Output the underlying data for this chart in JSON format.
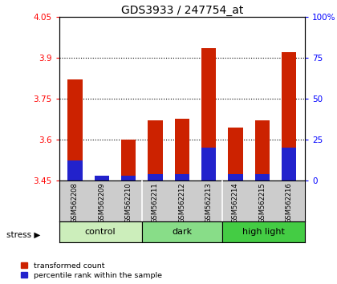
{
  "title": "GDS3933 / 247754_at",
  "samples": [
    "GSM562208",
    "GSM562209",
    "GSM562210",
    "GSM562211",
    "GSM562212",
    "GSM562213",
    "GSM562214",
    "GSM562215",
    "GSM562216"
  ],
  "transformed_counts": [
    3.82,
    3.465,
    3.6,
    3.67,
    3.675,
    3.935,
    3.645,
    3.67,
    3.92
  ],
  "percentile_ranks": [
    12,
    3,
    3,
    4,
    4,
    20,
    4,
    4,
    20
  ],
  "ylim_left": [
    3.45,
    4.05
  ],
  "ylim_right": [
    0,
    100
  ],
  "yticks_left": [
    3.45,
    3.6,
    3.75,
    3.9,
    4.05
  ],
  "yticks_right": [
    0,
    25,
    50,
    75,
    100
  ],
  "ytick_labels_left": [
    "3.45",
    "3.6",
    "3.75",
    "3.9",
    "4.05"
  ],
  "ytick_labels_right": [
    "0",
    "25",
    "50",
    "75",
    "100%"
  ],
  "groups": [
    {
      "label": "control",
      "color": "#cceebb"
    },
    {
      "label": "dark",
      "color": "#88dd88"
    },
    {
      "label": "high light",
      "color": "#44cc44"
    }
  ],
  "bar_color_red": "#cc2200",
  "bar_color_blue": "#2222cc",
  "bar_width": 0.55,
  "base_value": 3.45,
  "background_color": "#ffffff",
  "sample_box_color": "#cccccc",
  "stress_label": "stress",
  "legend_red": "transformed count",
  "legend_blue": "percentile rank within the sample",
  "gridlines": [
    3.6,
    3.75,
    3.9
  ]
}
